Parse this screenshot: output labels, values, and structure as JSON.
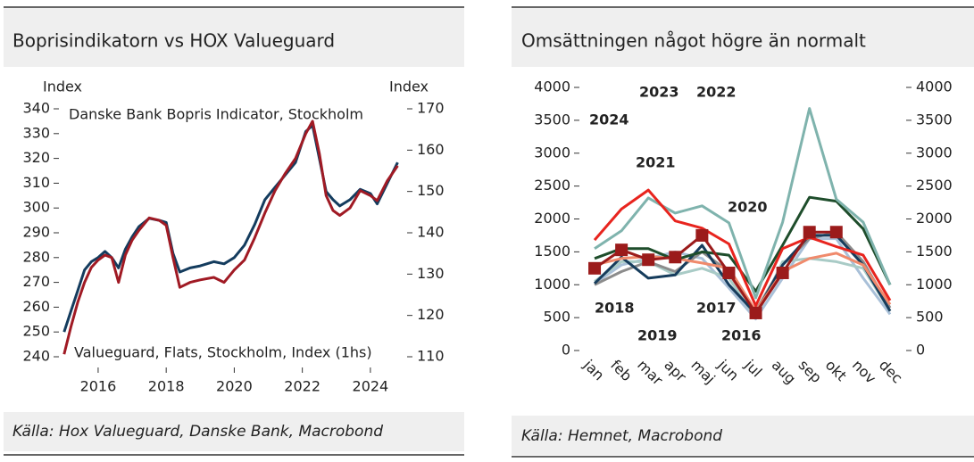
{
  "chart_data": [
    {
      "type": "line",
      "title": "Boprisindikatorn vs HOX Valueguard",
      "source": "Källa: Hox Valueguard, Danske Bank, Macrobond",
      "ylabel": "Index",
      "y2label": "Index",
      "x": [
        2015.0,
        2015.2,
        2015.4,
        2015.6,
        2015.8,
        2016.0,
        2016.2,
        2016.4,
        2016.6,
        2016.8,
        2017.0,
        2017.2,
        2017.5,
        2017.8,
        2018.0,
        2018.2,
        2018.4,
        2018.7,
        2019.0,
        2019.4,
        2019.7,
        2020.0,
        2020.3,
        2020.6,
        2020.9,
        2021.2,
        2021.5,
        2021.8,
        2022.1,
        2022.3,
        2022.5,
        2022.7,
        2022.9,
        2023.1,
        2023.4,
        2023.7,
        2024.0,
        2024.2,
        2024.5,
        2024.8
      ],
      "xlim": [
        2014.9,
        2025.0
      ],
      "xticks": [
        2016,
        2018,
        2020,
        2022,
        2024
      ],
      "ylim": [
        240,
        340
      ],
      "yticks": [
        240,
        250,
        260,
        270,
        280,
        290,
        300,
        310,
        320,
        330,
        340
      ],
      "y2lim": [
        110,
        170
      ],
      "y2ticks": [
        110,
        120,
        130,
        140,
        150,
        160,
        170
      ],
      "series": [
        {
          "name": "Danske Bank Bopris Indicator, Stockholm",
          "color": "#143c5e",
          "axis": "y2",
          "values": [
            116,
            121,
            126,
            131,
            133,
            134,
            135.5,
            134,
            131.5,
            136,
            139,
            141.5,
            143.5,
            143,
            142.5,
            135,
            130.5,
            131.5,
            132,
            133,
            132.5,
            134,
            137,
            142,
            148,
            151,
            154,
            157,
            164.5,
            166,
            158,
            150,
            148,
            146.5,
            148,
            150.5,
            149.5,
            147,
            152,
            157
          ]
        },
        {
          "name": "Valueguard, Flats, Stockholm, Index (1hs)",
          "color": "#a01a24",
          "values": [
            241,
            252,
            262,
            270,
            276,
            279,
            281,
            280,
            270,
            281,
            287,
            291,
            296,
            295,
            293,
            280,
            268,
            270,
            271,
            272,
            270,
            275,
            279,
            288,
            298,
            307,
            314,
            320,
            330,
            335,
            322,
            305,
            299,
            297,
            300,
            307,
            305,
            303,
            311,
            317
          ]
        }
      ]
    },
    {
      "type": "line",
      "title": "Omsättningen något högre än normalt",
      "source": "Källa: Hemnet, Macrobond",
      "categories": [
        "jan",
        "feb",
        "mar",
        "apr",
        "maj",
        "jun",
        "jul",
        "aug",
        "sep",
        "okt",
        "nov",
        "dec"
      ],
      "ylim": [
        0,
        4000
      ],
      "yticks": [
        0,
        500,
        1000,
        1500,
        2000,
        2500,
        3000,
        3500,
        4000
      ],
      "y2lim": [
        0,
        4000
      ],
      "y2ticks": [
        0,
        500,
        1000,
        1500,
        2000,
        2500,
        3000,
        3500,
        4000
      ],
      "series": [
        {
          "name": "2016",
          "color": "#a9c0d8",
          "values": [
            1020,
            1300,
            1400,
            1500,
            1400,
            950,
            480,
            1100,
            1700,
            1700,
            1100,
            550
          ]
        },
        {
          "name": "2017",
          "color": "#a9cbc6",
          "values": [
            1050,
            1350,
            1350,
            1150,
            1250,
            1100,
            500,
            1350,
            1400,
            1350,
            1250,
            600
          ]
        },
        {
          "name": "2019",
          "color": "#8c8c8c",
          "values": [
            1000,
            1200,
            1350,
            1200,
            1500,
            1200,
            600,
            1300,
            1700,
            1800,
            1350,
            650
          ]
        },
        {
          "name": "2018",
          "color": "#163c5c",
          "values": [
            1020,
            1420,
            1100,
            1150,
            1600,
            1000,
            560,
            1300,
            1750,
            1750,
            1300,
            600
          ]
        },
        {
          "name": "2023",
          "color": "#f08a6c",
          "values": [
            1300,
            1400,
            1430,
            1400,
            1330,
            1250,
            600,
            1200,
            1400,
            1480,
            1300,
            700
          ]
        },
        {
          "name": "2020",
          "color": "#1e4d2b",
          "values": [
            1400,
            1550,
            1550,
            1380,
            1500,
            1450,
            900,
            1600,
            2330,
            2270,
            1850,
            1000
          ]
        },
        {
          "name": "2021",
          "color": "#7fb3ad",
          "values": [
            1550,
            1820,
            2320,
            2090,
            2200,
            1940,
            800,
            1950,
            3680,
            2300,
            1950,
            1000
          ]
        },
        {
          "name": "2022",
          "color": "#e8241e",
          "values": [
            1680,
            2150,
            2440,
            1970,
            1860,
            1620,
            680,
            1550,
            1720,
            1580,
            1450,
            760
          ]
        },
        {
          "name": "2024",
          "color": "#9b1b1b",
          "marker": "square",
          "values": [
            1250,
            1530,
            1380,
            1420,
            1750,
            1180,
            570,
            1180,
            1800,
            1800,
            null,
            null
          ]
        }
      ]
    }
  ]
}
